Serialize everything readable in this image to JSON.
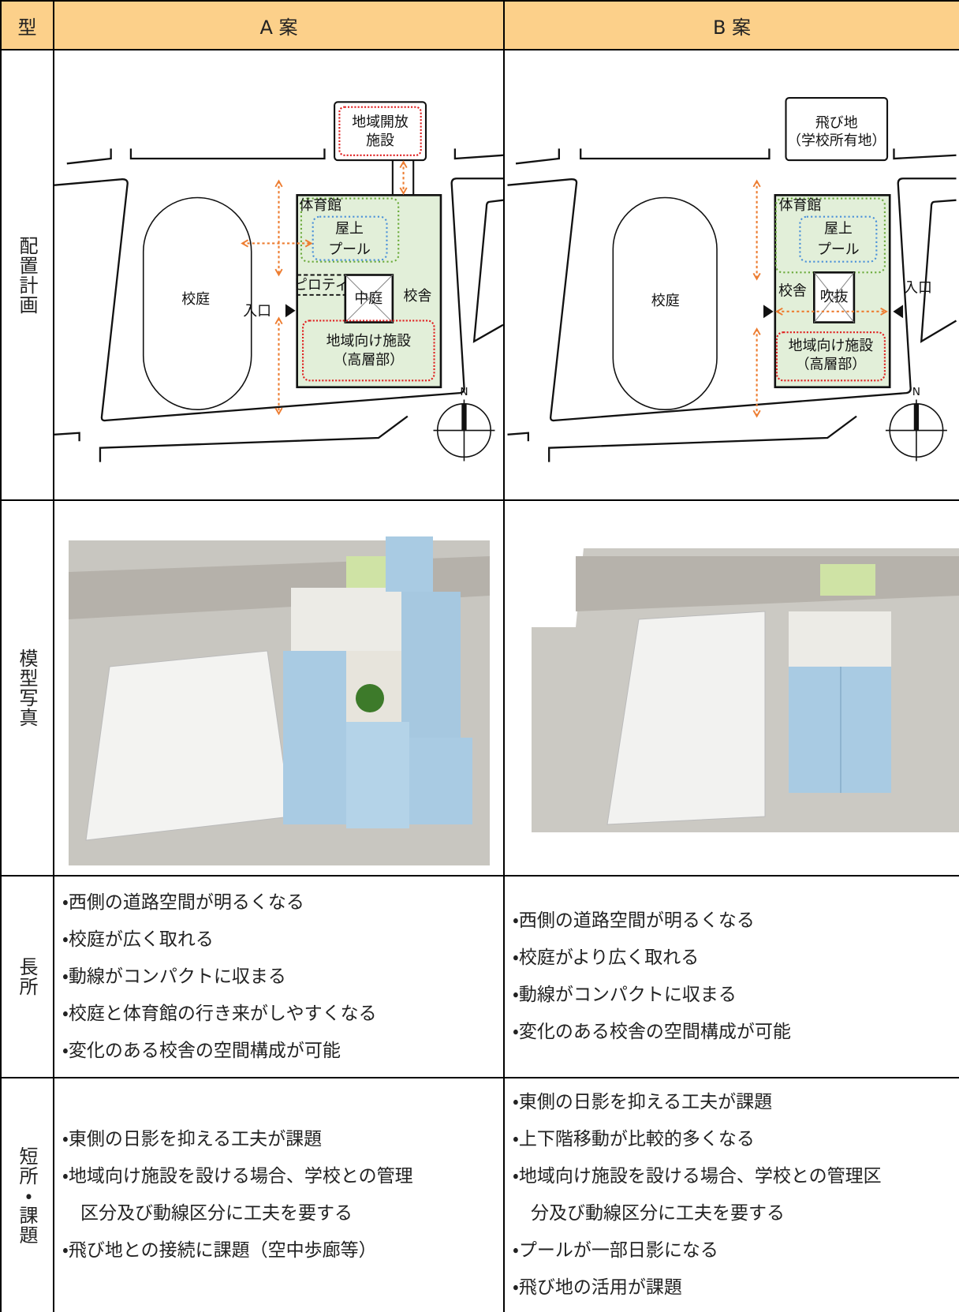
{
  "table": {
    "header": [
      "型",
      "A 案",
      "B 案"
    ],
    "row_labels": [
      "配置計画",
      "模型写真",
      "長所",
      "短所・課題"
    ],
    "site_plans": [
      {
        "community_open_facility": [
          "地域開放",
          "施設"
        ],
        "gym": "体育館",
        "pool": [
          "屋上",
          "プール"
        ],
        "schoolyard": "校庭",
        "entrance": "入口",
        "piloti": "ピロティ",
        "courtyard": "中庭",
        "school_building": "校舎",
        "community_facility": [
          "地域向け施設",
          "（高層部）"
        ],
        "north": "N"
      },
      {
        "detached_lot": [
          "飛び地",
          "（学校所有地）"
        ],
        "gym": "体育館",
        "pool": [
          "屋上",
          "プール"
        ],
        "schoolyard": "校庭",
        "school_building": "校舎",
        "atrium": "吹抜",
        "entrance": "入口",
        "community_facility": [
          "地域向け施設",
          "（高層部）"
        ],
        "north": "N"
      }
    ],
    "merits": [
      [
        "・西側の道路空間が明るくなる",
        "・校庭が広く取れる",
        "・動線がコンパクトに収まる",
        "・校庭と体育館の行き来がしやすくなる",
        "・変化のある校舎の空間構成が可能"
      ],
      [
        "・西側の道路空間が明るくなる",
        "・校庭がより広く取れる",
        "・動線がコンパクトに収まる",
        "・変化のある校舎の空間構成が可能"
      ]
    ],
    "issues": [
      [
        "・東側の日影を抑える工夫が課題",
        "・地域向け施設を設ける場合、学校との管理",
        "区分及び動線区分に工夫を要する",
        "・飛び地との接続に課題（空中歩廊等）"
      ],
      [
        "・東側の日影を抑える工夫が課題",
        "・上下階移動が比較的多くなる",
        "・地域向け施設を設ける場合、学校との管理区",
        "分及び動線区分に工夫を要する",
        "・プールが一部日影になる",
        "・飛び地の活用が課題"
      ]
    ]
  }
}
